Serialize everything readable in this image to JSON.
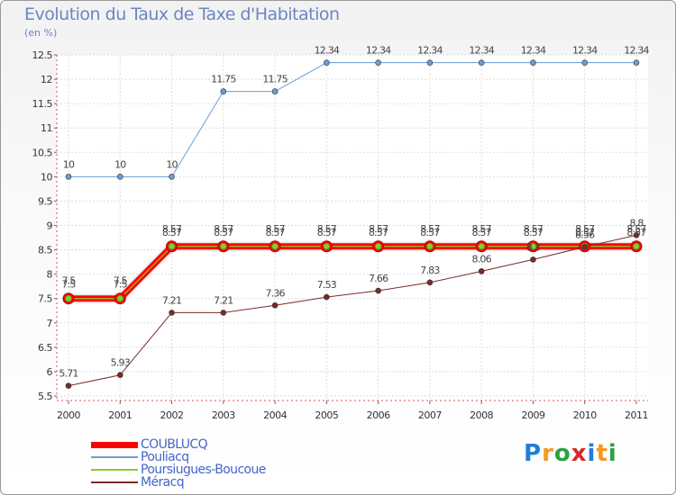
{
  "chart_data": {
    "type": "line",
    "title": "Evolution du Taux de Taxe d'Habitation",
    "unit_label": "(en %)",
    "xlabel": "",
    "ylabel": "(en %)",
    "x": [
      "2000",
      "2001",
      "2002",
      "2003",
      "2004",
      "2005",
      "2006",
      "2007",
      "2008",
      "2009",
      "2010",
      "2011"
    ],
    "ylim": [
      5.5,
      12.5
    ],
    "yticks": [
      "5.5",
      "6",
      "6.5",
      "7",
      "7.5",
      "8",
      "8.5",
      "9",
      "9.5",
      "10",
      "10.5",
      "11",
      "11.5",
      "12",
      "12.5"
    ],
    "grid": true,
    "legend_position": "bottom-left",
    "series": [
      {
        "name": "COUBLUCQ",
        "color": "#ff0000",
        "values": [
          7.5,
          7.5,
          8.57,
          8.57,
          8.57,
          8.57,
          8.57,
          8.57,
          8.57,
          8.57,
          8.57,
          8.57
        ],
        "labels": [
          "7.5",
          "7.5",
          "8.57",
          "8.57",
          "8.57",
          "8.57",
          "8.57",
          "8.57",
          "8.57",
          "8.57",
          "8.57",
          "8.57"
        ]
      },
      {
        "name": "Pouliacq",
        "color": "#6a9fd0",
        "values": [
          10,
          10,
          10,
          11.75,
          11.75,
          12.34,
          12.34,
          12.34,
          12.34,
          12.34,
          12.34,
          12.34
        ],
        "labels": [
          "10",
          "10",
          "10",
          "11.75",
          "11.75",
          "12.34",
          "12.34",
          "12.34",
          "12.34",
          "12.34",
          "12.34",
          "12.34"
        ]
      },
      {
        "name": "Poursiugues-Boucoue",
        "color": "#88cc33",
        "values": [
          7.5,
          7.5,
          8.57,
          8.57,
          8.57,
          8.57,
          8.57,
          8.57,
          8.57,
          8.57,
          8.57,
          8.57
        ],
        "labels": [
          "7.5",
          "7.5",
          "8.57",
          "8.57",
          "8.57",
          "8.57",
          "8.57",
          "8.57",
          "8.57",
          "8.57",
          "8.57",
          "8.57"
        ]
      },
      {
        "name": "Méracq",
        "color": "#7a2a2a",
        "values": [
          5.71,
          5.93,
          7.21,
          7.21,
          7.36,
          7.53,
          7.66,
          7.83,
          8.06,
          8.3,
          8.56,
          8.8
        ],
        "labels": [
          "5.71",
          "5.93",
          "7.21",
          "7.21",
          "7.36",
          "7.53",
          "7.66",
          "7.83",
          "8.06",
          "8.3",
          "8.56",
          "8.8"
        ]
      }
    ]
  },
  "logo": {
    "text": "Proxiti",
    "letters": [
      "P",
      "r",
      "o",
      "x",
      "i",
      "t",
      "i"
    ],
    "colors": [
      "#1f7fd6",
      "#f39a1f",
      "#2ea043",
      "#d62728",
      "#1f7fd6",
      "#f39a1f",
      "#2ea043"
    ]
  }
}
